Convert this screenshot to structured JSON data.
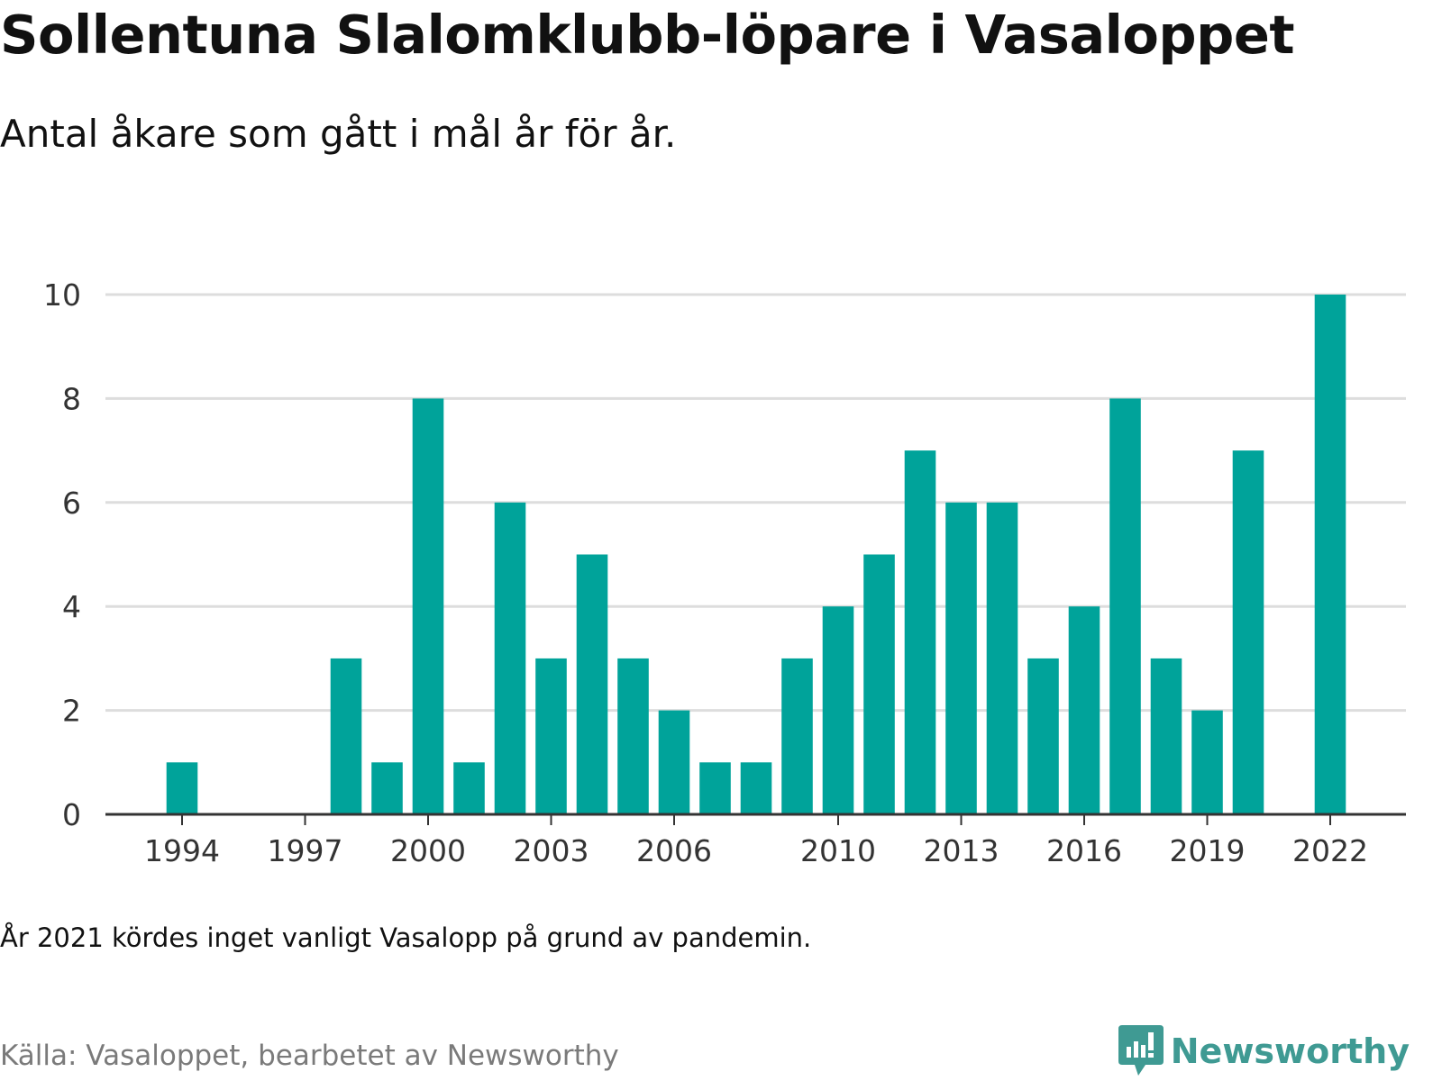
{
  "header": {
    "title": "Sollentuna Slalomklubb-löpare i Vasaloppet",
    "subtitle": "Antal åkare som gått i mål år för år."
  },
  "footer": {
    "note": "År 2021 kördes inget vanligt Vasalopp på grund av pandemin.",
    "source": "Källa: Vasaloppet, bearbetet av Newsworthy",
    "brand": "Newsworthy",
    "brand_icon": "bar-chart-speech-bubble-icon"
  },
  "colors": {
    "bar": "#00a39a",
    "grid": "#dddddd",
    "axis": "#333333",
    "brand": "#3f9a93"
  },
  "chart_data": {
    "type": "bar",
    "x": [
      1994,
      1995,
      1996,
      1997,
      1998,
      1999,
      2000,
      2001,
      2002,
      2003,
      2004,
      2005,
      2006,
      2007,
      2008,
      2009,
      2010,
      2011,
      2012,
      2013,
      2014,
      2015,
      2016,
      2017,
      2018,
      2019,
      2020,
      2021,
      2022
    ],
    "values": [
      1,
      0,
      0,
      0,
      3,
      1,
      8,
      1,
      6,
      3,
      5,
      3,
      2,
      1,
      1,
      3,
      4,
      5,
      7,
      6,
      6,
      3,
      4,
      8,
      3,
      2,
      7,
      null,
      10
    ],
    "xticks": [
      "1994",
      "1997",
      "2000",
      "2003",
      "2006",
      "2010",
      "2013",
      "2016",
      "2019",
      "2022"
    ],
    "yticks": [
      "0",
      "2",
      "4",
      "6",
      "8",
      "10"
    ],
    "ylim": [
      0,
      10
    ],
    "xlabel": "",
    "ylabel": "",
    "grid": true,
    "legend": "none"
  }
}
